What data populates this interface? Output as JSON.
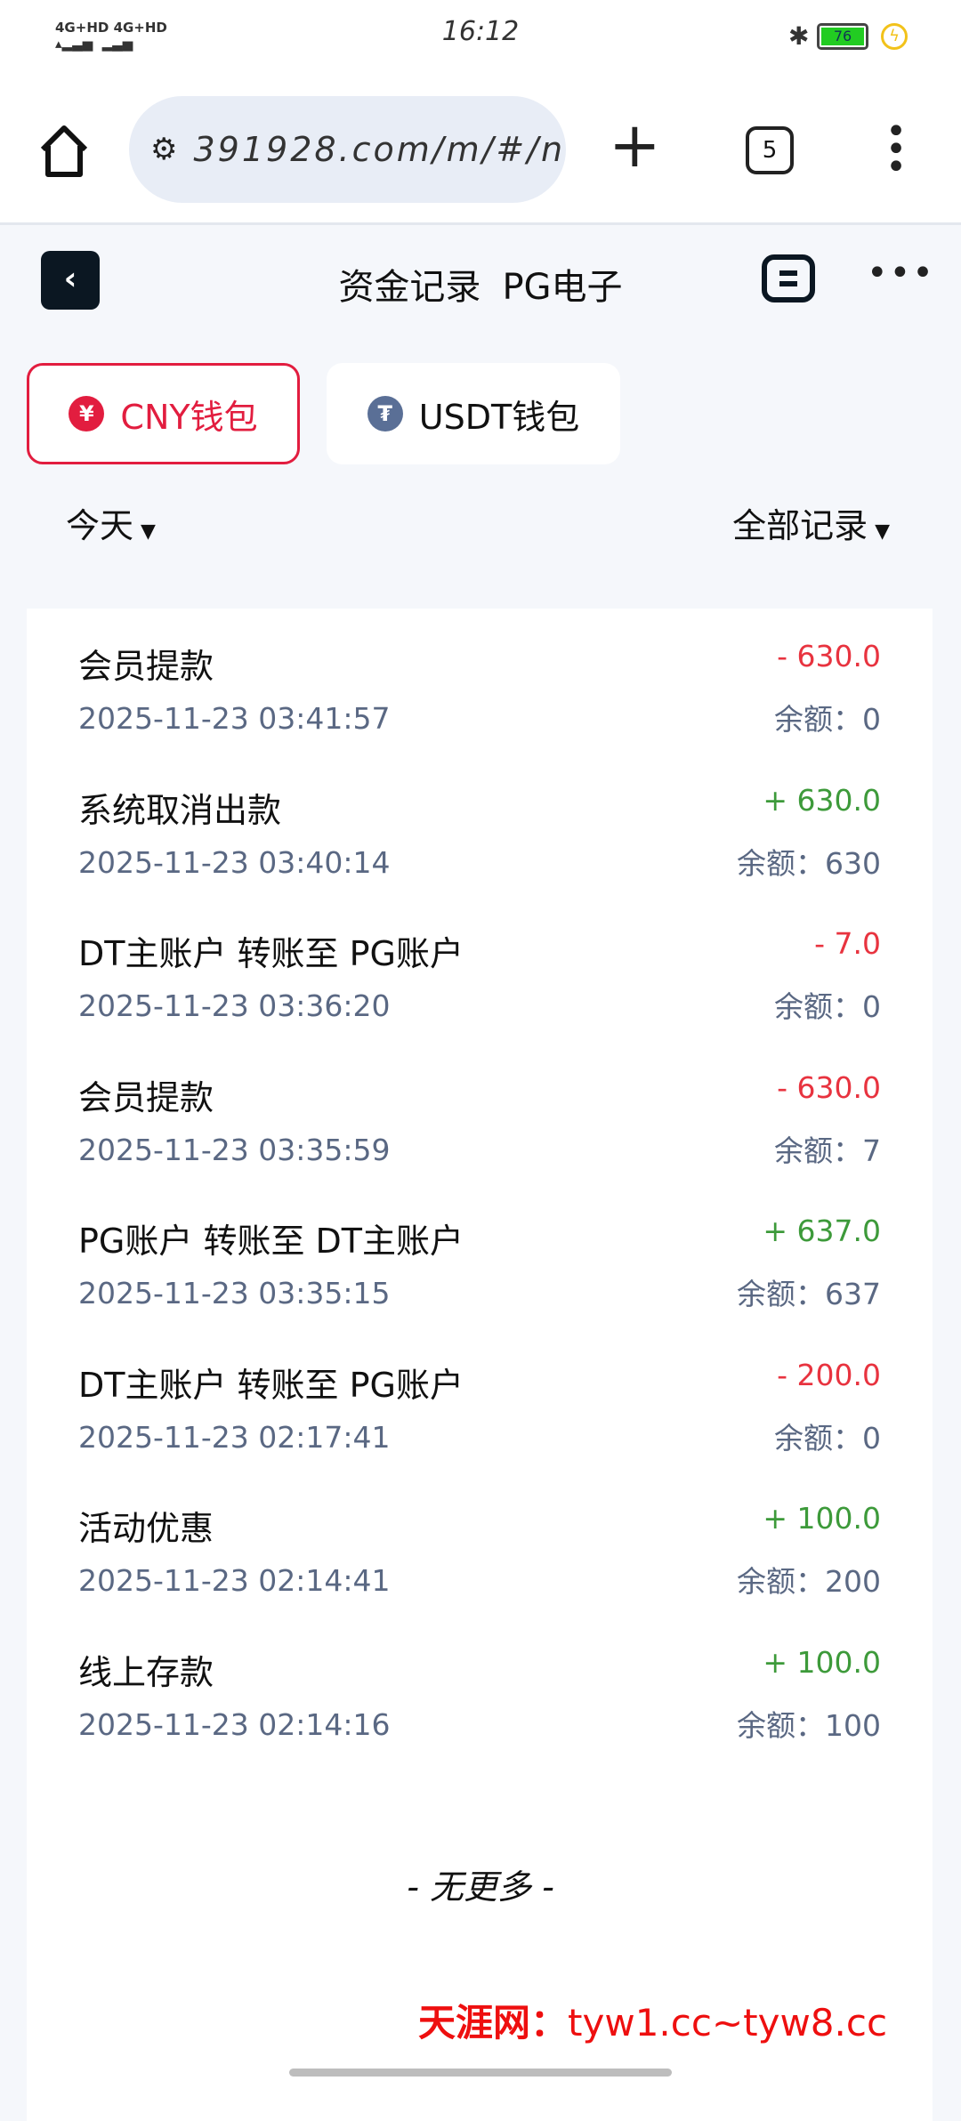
{
  "status_bar": {
    "network1": "4G+HD",
    "network2": "4G+HD",
    "time": "16:12",
    "battery": "76"
  },
  "browser": {
    "url": "391928.com/m/#/n",
    "tab_count": "5"
  },
  "header": {
    "title": "资金记录",
    "title_overlay": "PG电子"
  },
  "wallets": [
    {
      "label": "CNY钱包",
      "icon": "¥",
      "active": true
    },
    {
      "label": "USDT钱包",
      "icon": "₮",
      "active": false
    }
  ],
  "filters": {
    "date": "今天",
    "type": "全部记录"
  },
  "records": [
    {
      "title": "会员提款",
      "time": "2025-11-23 03:41:57",
      "amount": "- 630.0",
      "balance": "余额：0",
      "sign": "neg"
    },
    {
      "title": "系统取消出款",
      "time": "2025-11-23 03:40:14",
      "amount": "+ 630.0",
      "balance": "余额：630",
      "sign": "pos"
    },
    {
      "title": "DT主账户 转账至 PG账户",
      "time": "2025-11-23 03:36:20",
      "amount": "- 7.0",
      "balance": "余额：0",
      "sign": "neg"
    },
    {
      "title": "会员提款",
      "time": "2025-11-23 03:35:59",
      "amount": "- 630.0",
      "balance": "余额：7",
      "sign": "neg"
    },
    {
      "title": "PG账户 转账至 DT主账户",
      "time": "2025-11-23 03:35:15",
      "amount": "+ 637.0",
      "balance": "余额：637",
      "sign": "pos"
    },
    {
      "title": "DT主账户 转账至 PG账户",
      "time": "2025-11-23 02:17:41",
      "amount": "- 200.0",
      "balance": "余额：0",
      "sign": "neg"
    },
    {
      "title": "活动优惠",
      "time": "2025-11-23 02:14:41",
      "amount": "+ 100.0",
      "balance": "余额：200",
      "sign": "pos"
    },
    {
      "title": "线上存款",
      "time": "2025-11-23 02:14:16",
      "amount": "+ 100.0",
      "balance": "余额：100",
      "sign": "pos"
    }
  ],
  "footer": {
    "no_more": "- 无更多 -"
  },
  "watermark": {
    "name": "天涯网：",
    "domains": "tyw1.cc~tyw8.cc"
  },
  "colors": {
    "accent": "#e21d3f",
    "negative": "#e8333f",
    "positive": "#3d9a3a"
  }
}
